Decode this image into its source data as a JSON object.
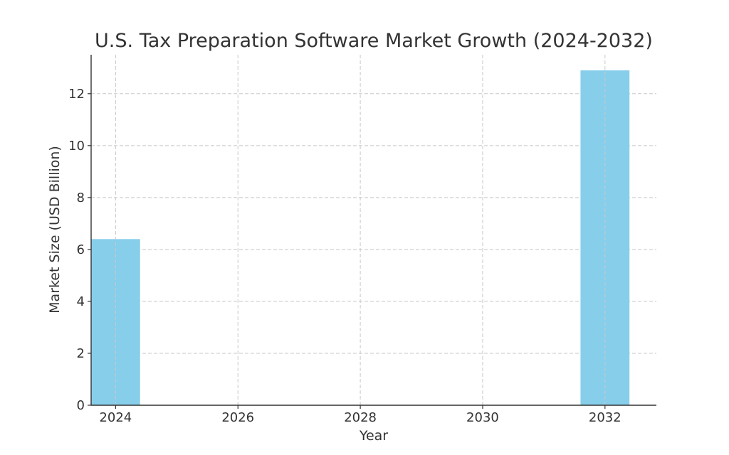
{
  "chart_data": {
    "type": "bar",
    "title": "U.S. Tax Preparation Software Market Growth (2024-2032)",
    "xlabel": "Year",
    "ylabel": "Market Size (USD Billion)",
    "x": [
      2024,
      2032
    ],
    "values": [
      6.4,
      12.9
    ],
    "xlim": [
      2023.6,
      2032.84
    ],
    "ylim": [
      0,
      13.5
    ],
    "x_ticks": [
      2024,
      2026,
      2028,
      2030,
      2032
    ],
    "y_ticks": [
      0,
      2,
      4,
      6,
      8,
      10,
      12
    ],
    "bar_width": 0.8,
    "bar_color": "#87CEEB",
    "grid": true,
    "grid_color": "#c8c8c8",
    "text_color": "#333333"
  }
}
